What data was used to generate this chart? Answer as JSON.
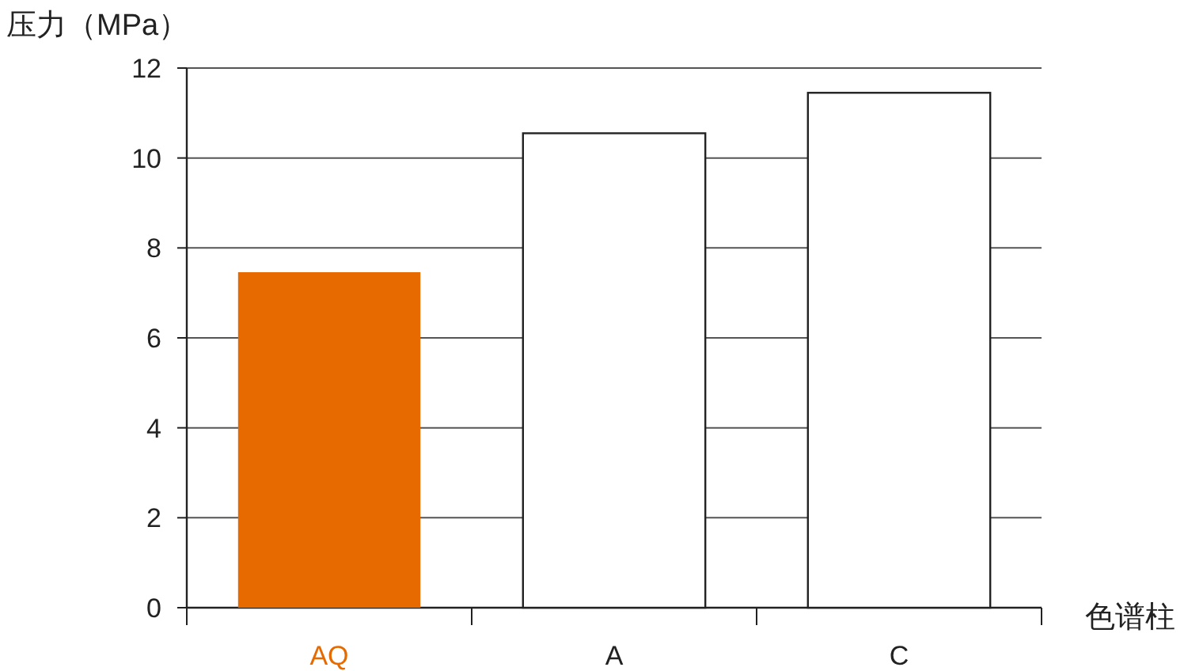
{
  "chart_data": {
    "type": "bar",
    "ylabel": "压力（MPa）",
    "xlabel": "色谱柱",
    "categories": [
      "AQ",
      "A",
      "C"
    ],
    "values": [
      7.46,
      10.55,
      11.45
    ],
    "colors": [
      "#e66a00",
      "#ffffff",
      "#ffffff"
    ],
    "ylim": [
      0,
      12
    ],
    "yticks": [
      0,
      2,
      4,
      6,
      8,
      10,
      12
    ],
    "grid": "y"
  }
}
